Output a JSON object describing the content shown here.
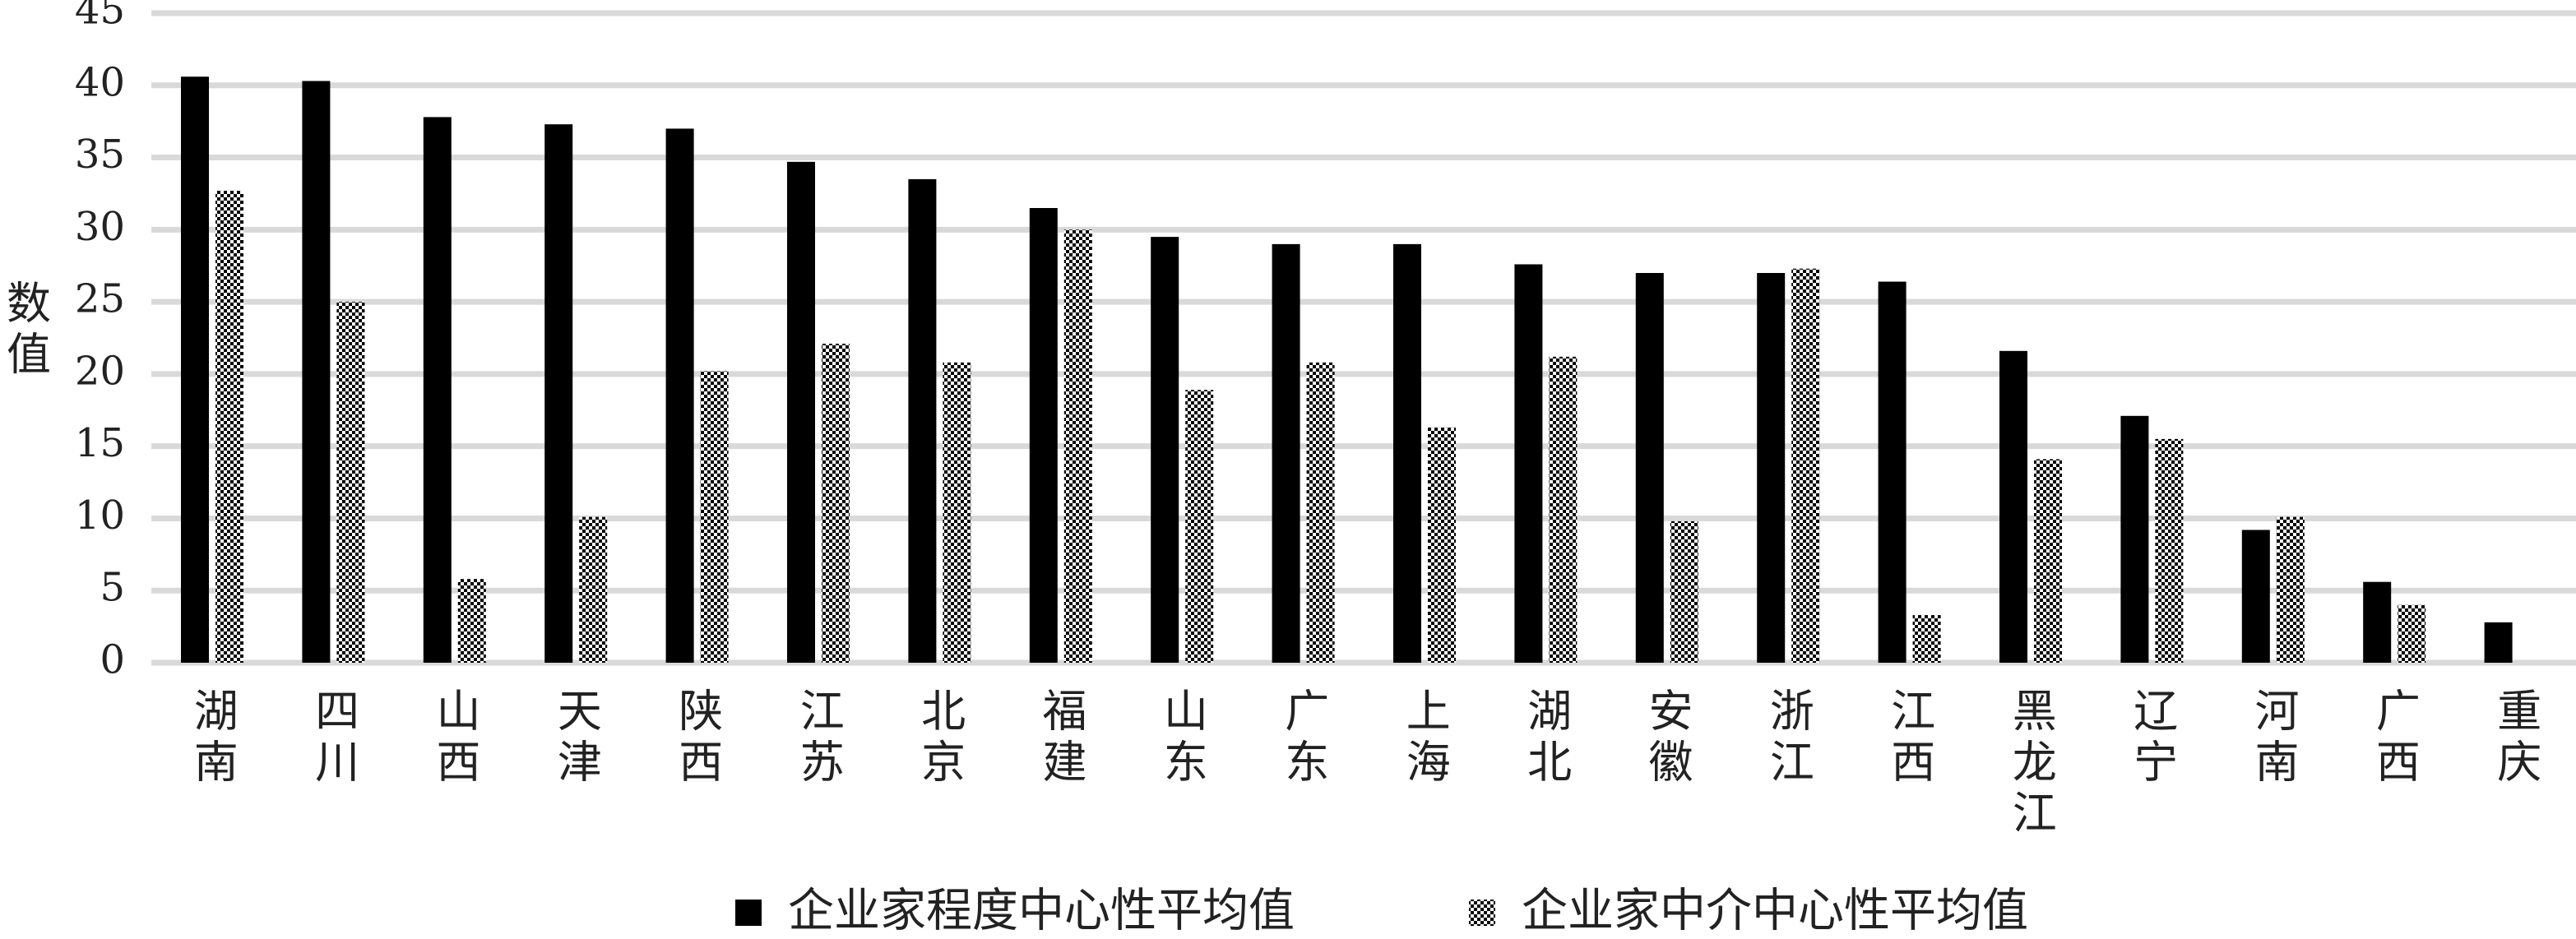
{
  "chart_data": {
    "type": "bar",
    "y_label": "数值",
    "categories": [
      "湖南",
      "四川",
      "山西",
      "天津",
      "陕西",
      "江苏",
      "北京",
      "福建",
      "山东",
      "广东",
      "上海",
      "湖北",
      "安徽",
      "浙江",
      "江西",
      "黑龙江",
      "辽宁",
      "河南",
      "广西",
      "重庆"
    ],
    "series": [
      {
        "name": "企业家程度中心性平均值",
        "color": "#000000",
        "pattern": "solid",
        "values": [
          40.6,
          40.3,
          37.8,
          37.3,
          37.0,
          34.7,
          33.5,
          31.5,
          29.5,
          29.0,
          29.0,
          27.6,
          27.0,
          27.0,
          26.4,
          21.6,
          17.1,
          9.2,
          5.6,
          2.8
        ]
      },
      {
        "name": "企业家中介中心性平均值",
        "color": "#000000",
        "pattern": "checkered",
        "values": [
          32.7,
          25.0,
          5.8,
          10.1,
          20.2,
          22.1,
          20.8,
          30.0,
          18.9,
          20.8,
          16.3,
          21.2,
          9.8,
          27.3,
          3.3,
          14.1,
          15.5,
          10.1,
          4.0,
          null
        ]
      }
    ],
    "ylim": [
      0,
      45
    ],
    "yticks": [
      0,
      5,
      10,
      15,
      20,
      25,
      30,
      35,
      40,
      45
    ],
    "grid": true,
    "legend": "bottom"
  }
}
